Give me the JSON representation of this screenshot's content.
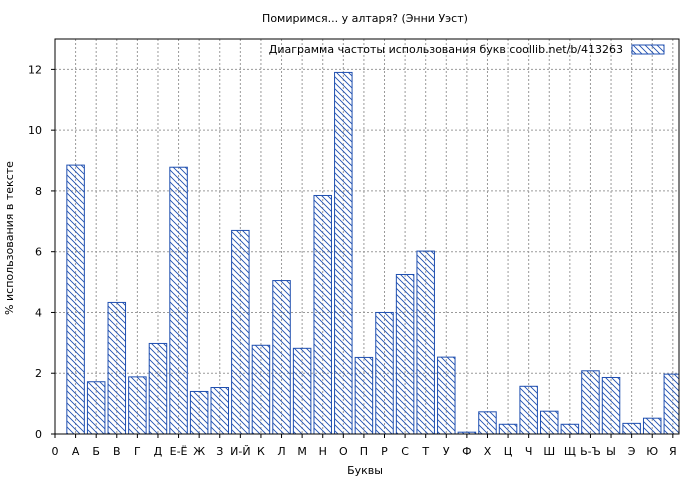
{
  "colors": {
    "bar_stroke": "#1f4fb0",
    "hatch": "#1f4fb0",
    "grid": "#9a9a9a",
    "axis": "#000000",
    "background": "#ffffff"
  },
  "chart_data": {
    "type": "bar",
    "title": "Помиримся... у алтаря? (Энни Уэст)",
    "xlabel": "Буквы",
    "ylabel": "% использования в тексте",
    "legend": {
      "label": "Диаграмма частоты использования букв  coollib.net/b/413263",
      "placement": "top-right"
    },
    "grid": true,
    "ylim": [
      0,
      13
    ],
    "yticks": [
      0,
      2,
      4,
      6,
      8,
      10,
      12
    ],
    "x_start_label": "0",
    "categories": [
      "А",
      "Б",
      "В",
      "Г",
      "Д",
      "Е-Ё",
      "Ж",
      "З",
      "И-Й",
      "К",
      "Л",
      "М",
      "Н",
      "О",
      "П",
      "Р",
      "С",
      "Т",
      "У",
      "Ф",
      "Х",
      "Ц",
      "Ч",
      "Ш",
      "Щ",
      "Ь-Ъ",
      "Ы",
      "Э",
      "Ю",
      "Я"
    ],
    "series": [
      {
        "values": [
          8.85,
          1.72,
          4.33,
          1.88,
          2.98,
          8.78,
          1.4,
          1.53,
          6.7,
          2.92,
          5.05,
          2.82,
          7.85,
          11.9,
          2.52,
          4.0,
          5.25,
          6.02,
          2.53,
          0.06,
          0.73,
          0.32,
          1.57,
          0.75,
          0.32,
          2.08,
          1.86,
          0.35,
          0.52,
          1.97
        ]
      }
    ]
  }
}
